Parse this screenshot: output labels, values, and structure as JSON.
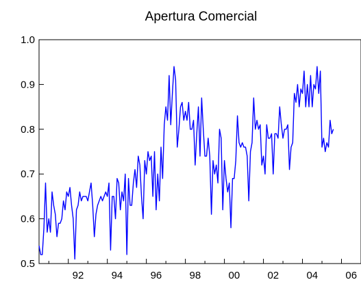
{
  "chart_data": {
    "type": "line",
    "title": "Apertura Comercial",
    "xlabel": "",
    "ylabel": "",
    "ylim": [
      0.5,
      1.0
    ],
    "xlim": [
      1990.5,
      2007.0
    ],
    "grid": false,
    "legend": "none",
    "x_tick_labels": [
      "92",
      "94",
      "96",
      "98",
      "00",
      "02",
      "04",
      "06"
    ],
    "x_tick_years": [
      1992,
      1994,
      1996,
      1998,
      2000,
      2002,
      2004,
      2006
    ],
    "y_tick_labels": [
      "0.5",
      "0.6",
      "0.7",
      "0.8",
      "0.9",
      "1.0"
    ],
    "y_ticks": [
      0.5,
      0.6,
      0.7,
      0.8,
      0.9,
      1.0
    ],
    "series": [
      {
        "color": "#0000ff",
        "start": "1990-07",
        "frequency": "monthly",
        "values": [
          0.54,
          0.52,
          0.52,
          0.58,
          0.68,
          0.57,
          0.6,
          0.57,
          0.66,
          0.63,
          0.61,
          0.56,
          0.59,
          0.59,
          0.6,
          0.64,
          0.62,
          0.66,
          0.65,
          0.67,
          0.63,
          0.6,
          0.51,
          0.62,
          0.63,
          0.66,
          0.64,
          0.65,
          0.65,
          0.65,
          0.64,
          0.66,
          0.68,
          0.63,
          0.56,
          0.61,
          0.63,
          0.64,
          0.65,
          0.64,
          0.65,
          0.66,
          0.65,
          0.68,
          0.53,
          0.65,
          0.65,
          0.6,
          0.69,
          0.68,
          0.62,
          0.66,
          0.64,
          0.7,
          0.52,
          0.69,
          0.63,
          0.63,
          0.68,
          0.71,
          0.67,
          0.74,
          0.72,
          0.65,
          0.6,
          0.73,
          0.7,
          0.75,
          0.73,
          0.74,
          0.65,
          0.75,
          0.62,
          0.7,
          0.64,
          0.76,
          0.69,
          0.81,
          0.85,
          0.82,
          0.92,
          0.81,
          0.88,
          0.94,
          0.91,
          0.76,
          0.8,
          0.85,
          0.86,
          0.82,
          0.84,
          0.82,
          0.86,
          0.8,
          0.8,
          0.82,
          0.72,
          0.79,
          0.85,
          0.74,
          0.87,
          0.8,
          0.74,
          0.74,
          0.78,
          0.74,
          0.61,
          0.73,
          0.7,
          0.72,
          0.68,
          0.8,
          0.78,
          0.62,
          0.73,
          0.69,
          0.66,
          0.68,
          0.58,
          0.69,
          0.69,
          0.73,
          0.83,
          0.77,
          0.76,
          0.77,
          0.76,
          0.76,
          0.74,
          0.64,
          0.75,
          0.77,
          0.87,
          0.8,
          0.82,
          0.8,
          0.81,
          0.72,
          0.74,
          0.7,
          0.81,
          0.78,
          0.78,
          0.79,
          0.7,
          0.79,
          0.79,
          0.78,
          0.85,
          0.81,
          0.78,
          0.8,
          0.8,
          0.81,
          0.71,
          0.76,
          0.77,
          0.88,
          0.86,
          0.9,
          0.85,
          0.89,
          0.88,
          0.93,
          0.85,
          0.9,
          0.85,
          0.92,
          0.85,
          0.9,
          0.89,
          0.94,
          0.88,
          0.93,
          0.76,
          0.78,
          0.75,
          0.77,
          0.76,
          0.82,
          0.79,
          0.8
        ]
      }
    ]
  }
}
